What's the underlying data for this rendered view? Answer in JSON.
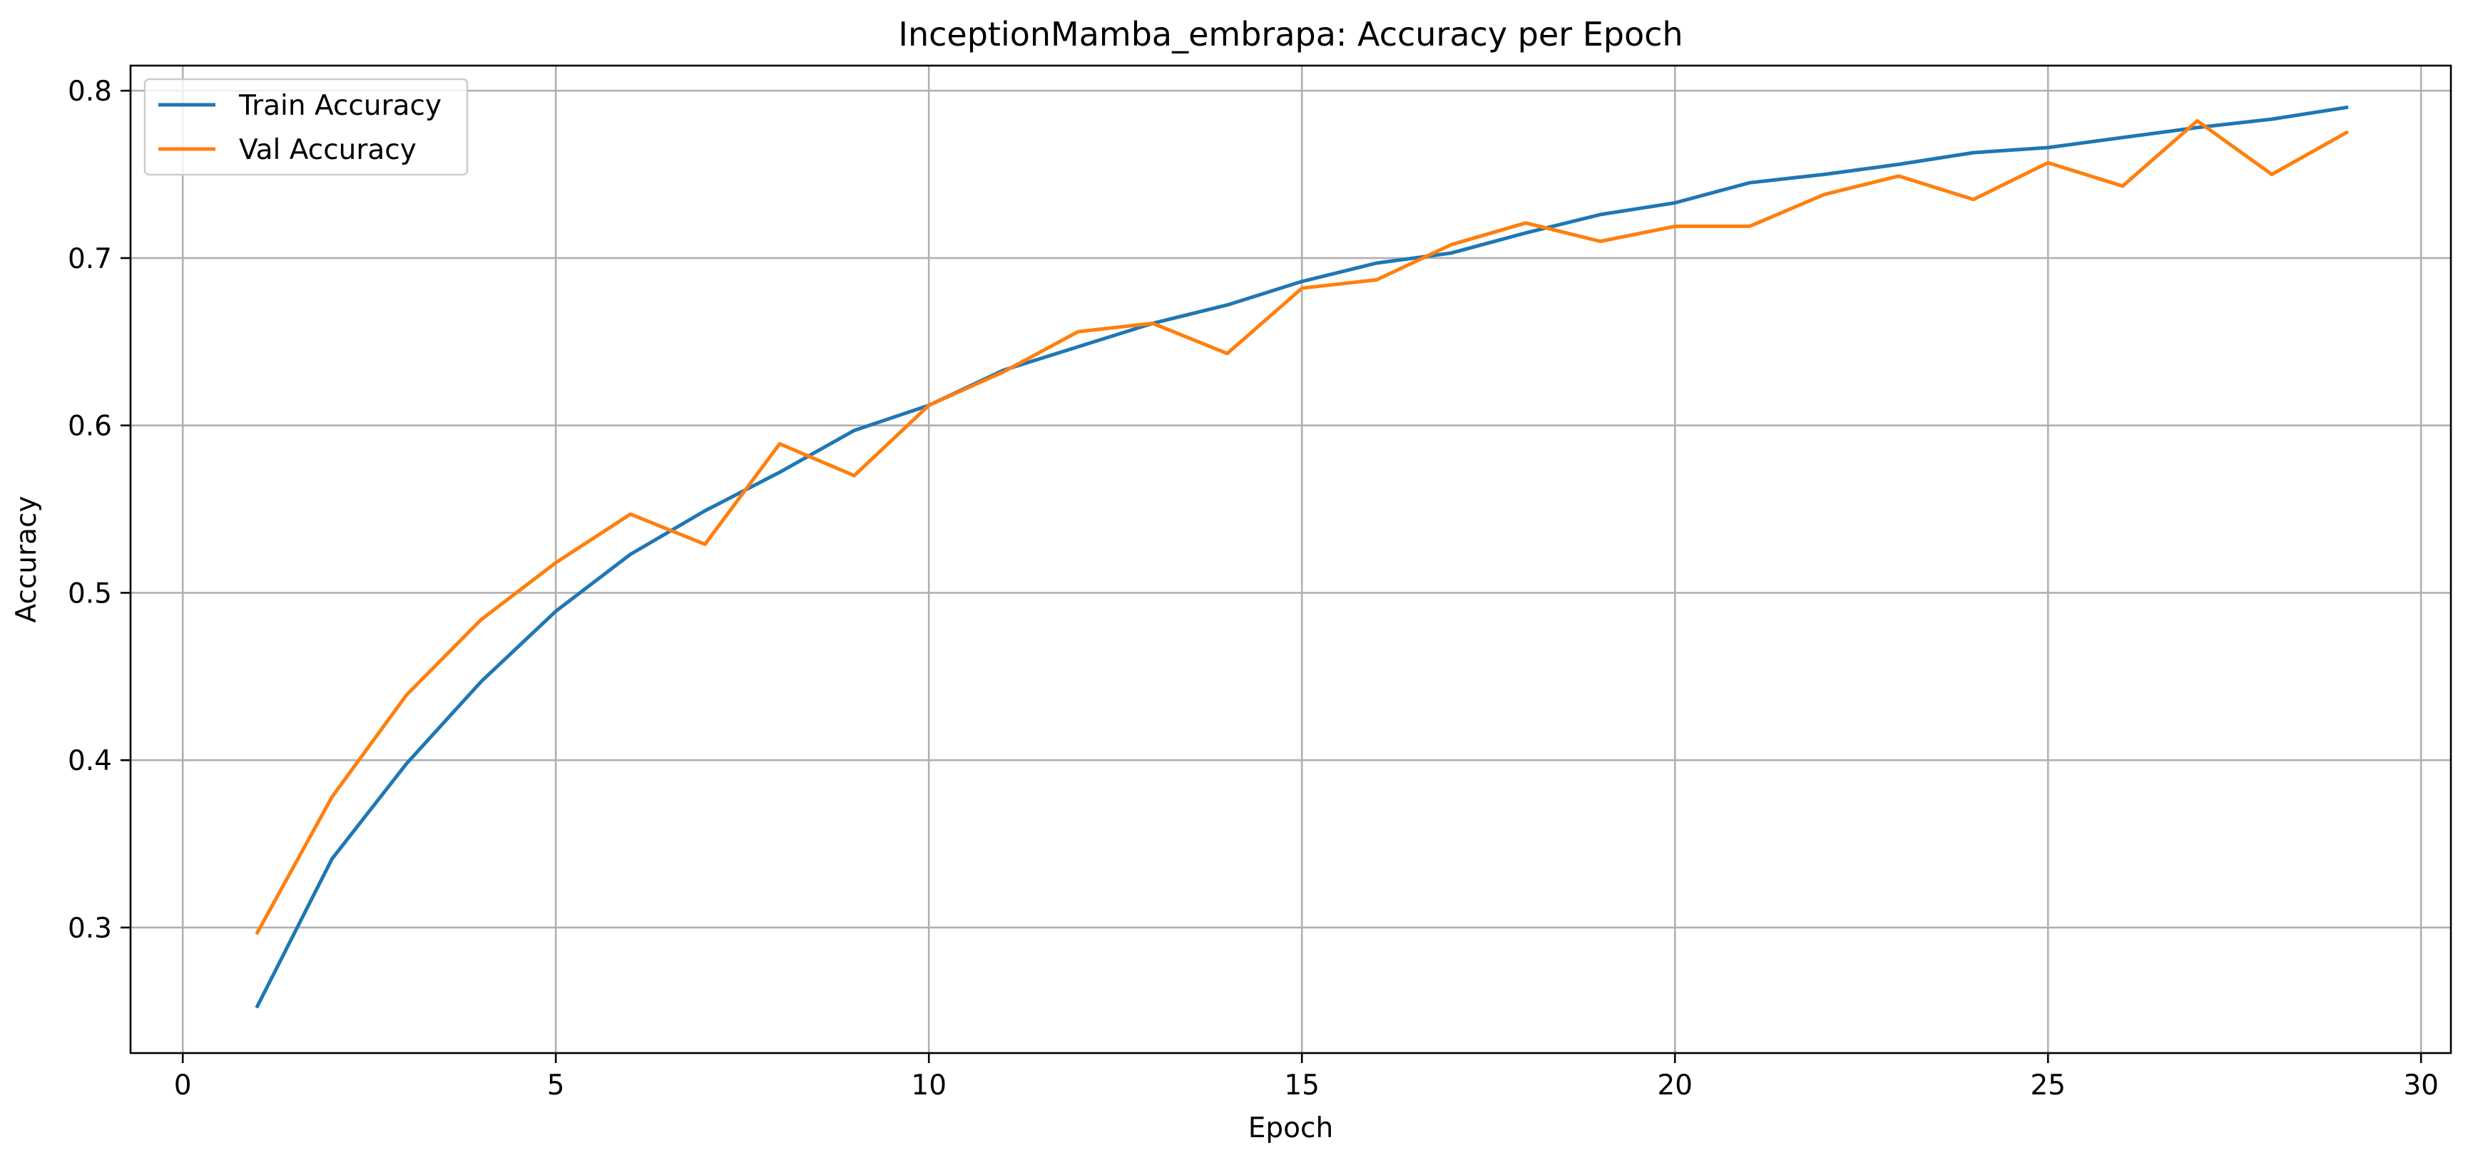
{
  "chart_data": {
    "type": "line",
    "title": "InceptionMamba_embrapa: Accuracy per Epoch",
    "xlabel": "Epoch",
    "ylabel": "Accuracy",
    "xlim": [
      -0.7,
      30.4
    ],
    "ylim": [
      0.225,
      0.815
    ],
    "xticks": [
      0,
      5,
      10,
      15,
      20,
      25,
      30
    ],
    "yticks": [
      0.3,
      0.4,
      0.5,
      0.6,
      0.7,
      0.8
    ],
    "grid": true,
    "legend_position": "upper-left",
    "x": [
      1,
      2,
      3,
      4,
      5,
      6,
      7,
      8,
      9,
      10,
      11,
      12,
      13,
      14,
      15,
      16,
      17,
      18,
      19,
      20,
      21,
      22,
      23,
      24,
      25,
      26,
      27,
      28,
      29
    ],
    "series": [
      {
        "name": "Train Accuracy",
        "color": "#1f77b4",
        "values": [
          0.253,
          0.341,
          0.398,
          0.447,
          0.489,
          0.523,
          0.549,
          0.572,
          0.597,
          0.612,
          0.633,
          0.647,
          0.661,
          0.672,
          0.686,
          0.697,
          0.703,
          0.715,
          0.726,
          0.733,
          0.745,
          0.75,
          0.756,
          0.763,
          0.766,
          0.772,
          0.778,
          0.783,
          0.79
        ]
      },
      {
        "name": "Val Accuracy",
        "color": "#ff7f0e",
        "values": [
          0.297,
          0.378,
          0.439,
          0.484,
          0.518,
          0.547,
          0.529,
          0.589,
          0.57,
          0.612,
          0.632,
          0.656,
          0.661,
          0.643,
          0.682,
          0.687,
          0.708,
          0.721,
          0.71,
          0.719,
          0.719,
          0.738,
          0.749,
          0.735,
          0.757,
          0.743,
          0.782,
          0.75,
          0.775
        ]
      }
    ]
  }
}
